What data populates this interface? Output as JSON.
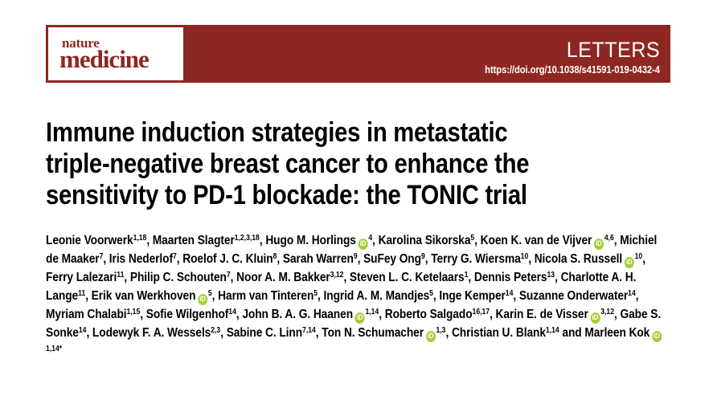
{
  "masthead": {
    "journal_logo": {
      "line1": "nature",
      "line2": "medicine"
    },
    "section_label": "LETTERS",
    "doi_url": "https://doi.org/10.1038/s41591-019-0432-4",
    "colors": {
      "bar": "#8E2722",
      "text_on_bar": "#FFFFFF"
    }
  },
  "article": {
    "title": "Immune induction strategies in metastatic triple-negative breast cancer to enhance the sensitivity to PD-1 blockade: the TONIC trial",
    "title_lines": [
      "Immune induction strategies in metastatic",
      "triple-negative breast cancer to enhance the",
      "sensitivity to PD-1 blockade: the TONIC trial"
    ],
    "orcid_icon": {
      "glyph": "iD",
      "color": "#A6CE39"
    },
    "authors": [
      {
        "name": "Leonie Voorwerk",
        "sup": "1,18",
        "orcid": false,
        "suffix": ", "
      },
      {
        "name": "Maarten Slagter",
        "sup": "1,2,3,18",
        "orcid": false,
        "suffix": ", "
      },
      {
        "name": "Hugo M. Horlings",
        "sup": "4",
        "orcid": true,
        "suffix": ", "
      },
      {
        "name": "Karolina Sikorska",
        "sup": "5",
        "orcid": false,
        "suffix": ", "
      },
      {
        "name": "Koen K. van de Vijver",
        "sup": "4,6",
        "orcid": true,
        "suffix": ", "
      },
      {
        "name": "Michiel de Maaker",
        "sup": "7",
        "orcid": false,
        "suffix": ", "
      },
      {
        "name": "Iris Nederlof",
        "sup": "7",
        "orcid": false,
        "suffix": ", "
      },
      {
        "name": "Roelof J. C. Kluin",
        "sup": "8",
        "orcid": false,
        "suffix": ", "
      },
      {
        "name": "Sarah Warren",
        "sup": "9",
        "orcid": false,
        "suffix": ", "
      },
      {
        "name": "SuFey Ong",
        "sup": "9",
        "orcid": false,
        "suffix": ", "
      },
      {
        "name": "Terry G. Wiersma",
        "sup": "10",
        "orcid": false,
        "suffix": ", "
      },
      {
        "name": "Nicola S. Russell",
        "sup": "10",
        "orcid": true,
        "suffix": ", "
      },
      {
        "name": "Ferry Lalezari",
        "sup": "11",
        "orcid": false,
        "suffix": ", "
      },
      {
        "name": "Philip C. Schouten",
        "sup": "7",
        "orcid": false,
        "suffix": ", "
      },
      {
        "name": "Noor A. M. Bakker",
        "sup": "3,12",
        "orcid": false,
        "suffix": ", "
      },
      {
        "name": "Steven L. C. Ketelaars",
        "sup": "1",
        "orcid": false,
        "suffix": ", "
      },
      {
        "name": "Dennis Peters",
        "sup": "13",
        "orcid": false,
        "suffix": ", "
      },
      {
        "name": "Charlotte A. H. Lange",
        "sup": "11",
        "orcid": false,
        "suffix": ", "
      },
      {
        "name": "Erik van Werkhoven",
        "sup": "5",
        "orcid": true,
        "suffix": ", "
      },
      {
        "name": "Harm van Tinteren",
        "sup": "5",
        "orcid": false,
        "suffix": ", "
      },
      {
        "name": "Ingrid A. M. Mandjes",
        "sup": "5",
        "orcid": false,
        "suffix": ", "
      },
      {
        "name": "Inge Kemper",
        "sup": "14",
        "orcid": false,
        "suffix": ", "
      },
      {
        "name": "Suzanne Onderwater",
        "sup": "14",
        "orcid": false,
        "suffix": ", "
      },
      {
        "name": "Myriam Chalabi",
        "sup": "1,15",
        "orcid": false,
        "suffix": ", "
      },
      {
        "name": "Sofie Wilgenhof",
        "sup": "14",
        "orcid": false,
        "suffix": ", "
      },
      {
        "name": "John B. A. G. Haanen",
        "sup": "1,14",
        "orcid": true,
        "suffix": ", "
      },
      {
        "name": "Roberto Salgado",
        "sup": "16,17",
        "orcid": false,
        "suffix": ", "
      },
      {
        "name": "Karin E. de Visser",
        "sup": "3,12",
        "orcid": true,
        "suffix": ", "
      },
      {
        "name": "Gabe S. Sonke",
        "sup": "14",
        "orcid": false,
        "suffix": ", "
      },
      {
        "name": "Lodewyk F. A. Wessels",
        "sup": "2,3",
        "orcid": false,
        "suffix": ", "
      },
      {
        "name": "Sabine C. Linn",
        "sup": "7,14",
        "orcid": false,
        "suffix": ", "
      },
      {
        "name": "Ton N. Schumacher",
        "sup": "1,3",
        "orcid": true,
        "suffix": ", "
      },
      {
        "name": "Christian U. Blank",
        "sup": "1,14",
        "orcid": false,
        "suffix": " and "
      },
      {
        "name": "Marleen Kok",
        "sup": "1,14*",
        "orcid": true,
        "suffix": ""
      }
    ]
  }
}
